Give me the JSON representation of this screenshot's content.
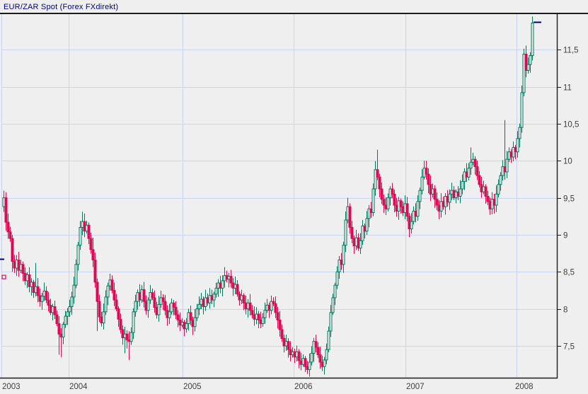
{
  "window": {
    "title": "EUR/ZAR Spot (Forex FXdirekt)"
  },
  "chart_data": {
    "type": "candlestick",
    "title": "EUR/ZAR Spot (Forex FXdirekt)",
    "instrument": "EUR/ZAR Spot",
    "source": "Forex FXdirekt",
    "frequency": "weekly",
    "grid": true,
    "x_tick_labels": [
      "2003",
      "2004",
      "2005",
      "2006",
      "2007",
      "2008"
    ],
    "y_ticks": [
      7.5,
      8,
      8.5,
      9,
      9.5,
      10,
      10.5,
      11,
      11.5
    ],
    "y_tick_labels": [
      "7,5",
      "8",
      "8,5",
      "9",
      "9,5",
      "10",
      "10,5",
      "11",
      "11,5"
    ],
    "ylim": [
      7.07,
      11.98
    ],
    "decimal_separator": ",",
    "up_color": "#00795c",
    "down_color": "#dc0a55",
    "grid_color": "#ccd3ec",
    "axis_color": "#1c1c1c",
    "label_color": "#3f3f3f",
    "title_color": "#000080",
    "last_price": 11.87,
    "last_price_marker_color": "#000080",
    "left_markers": [
      {
        "price": 8.67,
        "type": "dash",
        "color": "#000080"
      },
      {
        "price": 8.43,
        "type": "hollow-square",
        "color": "#dc0a55"
      }
    ],
    "first_open": 9.38,
    "closes": [
      9.5,
      9.17,
      9.04,
      8.95,
      8.64,
      8.55,
      8.66,
      8.52,
      8.6,
      8.48,
      8.38,
      8.46,
      8.3,
      8.36,
      8.22,
      8.3,
      8.18,
      8.1,
      8.17,
      8.24,
      8.12,
      8.05,
      7.95,
      8.03,
      7.92,
      7.8,
      7.66,
      7.62,
      7.79,
      7.9,
      7.96,
      8.03,
      8.16,
      8.32,
      8.6,
      8.86,
      9.1,
      9.18,
      9.05,
      9.13,
      8.95,
      8.8,
      8.66,
      8.36,
      8.1,
      7.89,
      7.81,
      7.96,
      8.16,
      8.31,
      8.39,
      8.25,
      8.12,
      8.0,
      7.86,
      7.72,
      7.61,
      7.66,
      7.58,
      7.56,
      7.68,
      7.96,
      8.1,
      8.22,
      8.12,
      8.26,
      8.1,
      7.98,
      8.12,
      8.22,
      8.15,
      8.02,
      7.92,
      8.06,
      8.15,
      8.1,
      7.98,
      7.88,
      7.96,
      8.08,
      8.02,
      7.92,
      7.85,
      7.78,
      7.82,
      7.73,
      7.8,
      7.95,
      7.85,
      7.76,
      7.88,
      8.0,
      8.06,
      8.13,
      8.03,
      8.15,
      8.08,
      8.18,
      8.12,
      8.2,
      8.28,
      8.35,
      8.28,
      8.38,
      8.45,
      8.4,
      8.44,
      8.35,
      8.28,
      8.33,
      8.2,
      8.12,
      8.18,
      8.08,
      8.0,
      8.08,
      7.98,
      7.92,
      7.86,
      7.93,
      7.85,
      7.8,
      7.88,
      7.98,
      8.05,
      7.98,
      8.1,
      8.07,
      7.95,
      7.85,
      7.72,
      7.6,
      7.5,
      7.56,
      7.45,
      7.38,
      7.42,
      7.35,
      7.42,
      7.3,
      7.25,
      7.33,
      7.22,
      7.18,
      7.28,
      7.4,
      7.56,
      7.48,
      7.38,
      7.28,
      7.22,
      7.31,
      7.45,
      7.7,
      7.95,
      8.15,
      8.32,
      8.5,
      8.66,
      8.6,
      8.86,
      9.2,
      9.38,
      9.1,
      8.95,
      8.85,
      8.96,
      8.82,
      8.92,
      9.12,
      9.05,
      9.22,
      9.35,
      9.3,
      9.62,
      9.88,
      9.78,
      9.62,
      9.48,
      9.4,
      9.35,
      9.5,
      9.62,
      9.55,
      9.4,
      9.32,
      9.46,
      9.38,
      9.3,
      9.42,
      9.25,
      9.08,
      9.18,
      9.32,
      9.25,
      9.45,
      9.6,
      9.78,
      9.9,
      9.82,
      9.68,
      9.55,
      9.62,
      9.48,
      9.4,
      9.32,
      9.45,
      9.38,
      9.52,
      9.44,
      9.55,
      9.6,
      9.5,
      9.58,
      9.52,
      9.62,
      9.72,
      9.85,
      9.78,
      9.9,
      9.98,
      10.02,
      9.92,
      9.8,
      9.68,
      9.58,
      9.65,
      9.52,
      9.45,
      9.35,
      9.48,
      9.4,
      9.55,
      9.68,
      9.8,
      9.92,
      9.85,
      10.02,
      10.12,
      10.05,
      10.18,
      10.12,
      10.3,
      10.45,
      10.92,
      11.44,
      11.22,
      11.3,
      11.42,
      11.86
    ],
    "spikes": [
      {
        "i": 0,
        "high": 9.54
      },
      {
        "i": 4,
        "low": 8.5
      },
      {
        "i": 15,
        "high": 8.62
      },
      {
        "i": 26,
        "low": 7.38
      },
      {
        "i": 27,
        "low": 7.35
      },
      {
        "i": 37,
        "high": 9.31
      },
      {
        "i": 42,
        "high": 8.96
      },
      {
        "i": 44,
        "low": 7.7
      },
      {
        "i": 57,
        "low": 7.4
      },
      {
        "i": 59,
        "low": 7.31
      },
      {
        "i": 104,
        "high": 8.51
      },
      {
        "i": 126,
        "high": 8.17
      },
      {
        "i": 142,
        "low": 7.15
      },
      {
        "i": 143,
        "low": 7.12
      },
      {
        "i": 150,
        "low": 7.16
      },
      {
        "i": 162,
        "high": 9.5
      },
      {
        "i": 176,
        "high": 10.15
      },
      {
        "i": 191,
        "low": 8.98
      },
      {
        "i": 198,
        "high": 10.0
      },
      {
        "i": 220,
        "high": 10.18
      },
      {
        "i": 229,
        "low": 9.27
      },
      {
        "i": 236,
        "high": 10.55
      },
      {
        "i": 249,
        "high": 11.9
      }
    ]
  }
}
